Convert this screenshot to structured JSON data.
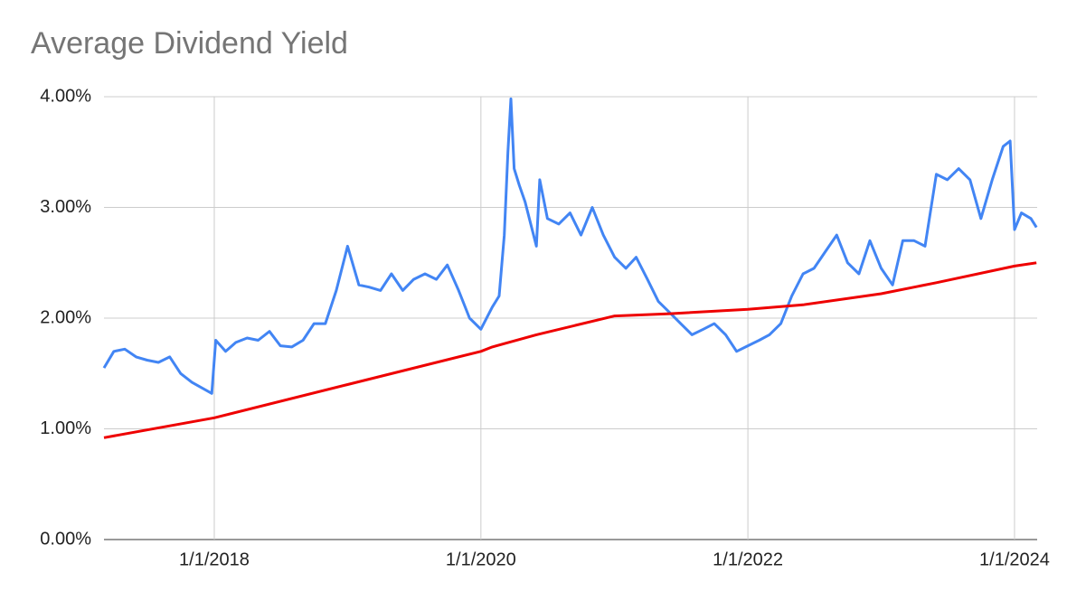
{
  "chart_data": {
    "type": "line",
    "title": "Average Dividend Yield",
    "xlim": [
      "2017-03-05",
      "2024-03-03"
    ],
    "xticks": [
      {
        "value": "2018-01-01",
        "label": "1/1/2018"
      },
      {
        "value": "2020-01-01",
        "label": "1/1/2020"
      },
      {
        "value": "2022-01-01",
        "label": "1/1/2022"
      },
      {
        "value": "2024-01-01",
        "label": "1/1/2024"
      }
    ],
    "ylim": [
      0,
      4
    ],
    "yticks": [
      {
        "value": 0,
        "label": "0.00%"
      },
      {
        "value": 1,
        "label": "1.00%"
      },
      {
        "value": 2,
        "label": "2.00%"
      },
      {
        "value": 3,
        "label": "3.00%"
      },
      {
        "value": 4,
        "label": "4.00%"
      }
    ],
    "grid": true,
    "series": [
      {
        "color": "#4285f4",
        "x": [
          "2017-03-05",
          "2017-04-01",
          "2017-05-01",
          "2017-06-01",
          "2017-07-01",
          "2017-08-01",
          "2017-09-01",
          "2017-10-01",
          "2017-11-01",
          "2017-12-25",
          "2018-01-05",
          "2018-02-01",
          "2018-03-01",
          "2018-04-01",
          "2018-05-01",
          "2018-06-01",
          "2018-07-01",
          "2018-08-01",
          "2018-09-01",
          "2018-10-01",
          "2018-11-01",
          "2018-12-01",
          "2019-01-01",
          "2019-02-01",
          "2019-03-01",
          "2019-04-01",
          "2019-05-01",
          "2019-06-01",
          "2019-07-01",
          "2019-08-01",
          "2019-09-01",
          "2019-10-01",
          "2019-11-01",
          "2019-12-01",
          "2020-01-01",
          "2020-02-01",
          "2020-02-20",
          "2020-03-05",
          "2020-03-15",
          "2020-03-23",
          "2020-04-01",
          "2020-04-15",
          "2020-05-01",
          "2020-06-01",
          "2020-06-10",
          "2020-07-01",
          "2020-08-01",
          "2020-09-01",
          "2020-10-01",
          "2020-11-01",
          "2020-12-01",
          "2021-01-01",
          "2021-02-01",
          "2021-03-01",
          "2021-04-01",
          "2021-05-01",
          "2021-06-01",
          "2021-07-01",
          "2021-08-01",
          "2021-09-01",
          "2021-10-01",
          "2021-11-01",
          "2021-12-01",
          "2022-01-01",
          "2022-02-01",
          "2022-03-01",
          "2022-04-01",
          "2022-05-01",
          "2022-06-01",
          "2022-07-01",
          "2022-08-01",
          "2022-09-01",
          "2022-10-01",
          "2022-11-01",
          "2022-12-01",
          "2023-01-01",
          "2023-02-01",
          "2023-03-01",
          "2023-04-01",
          "2023-05-01",
          "2023-06-01",
          "2023-07-01",
          "2023-08-01",
          "2023-09-01",
          "2023-10-01",
          "2023-11-01",
          "2023-12-01",
          "2023-12-20",
          "2024-01-01",
          "2024-01-20",
          "2024-02-15",
          "2024-03-01"
        ],
        "values": [
          1.55,
          1.7,
          1.72,
          1.65,
          1.62,
          1.6,
          1.65,
          1.5,
          1.42,
          1.32,
          1.8,
          1.7,
          1.78,
          1.82,
          1.8,
          1.88,
          1.75,
          1.74,
          1.8,
          1.95,
          1.95,
          2.25,
          2.65,
          2.3,
          2.28,
          2.25,
          2.4,
          2.25,
          2.35,
          2.4,
          2.35,
          2.48,
          2.25,
          2.0,
          1.9,
          2.1,
          2.2,
          2.75,
          3.5,
          3.98,
          3.35,
          3.2,
          3.05,
          2.65,
          3.25,
          2.9,
          2.85,
          2.95,
          2.75,
          3.0,
          2.75,
          2.55,
          2.45,
          2.55,
          2.35,
          2.15,
          2.05,
          1.95,
          1.85,
          1.9,
          1.95,
          1.85,
          1.7,
          1.75,
          1.8,
          1.85,
          1.95,
          2.2,
          2.4,
          2.45,
          2.6,
          2.75,
          2.5,
          2.4,
          2.7,
          2.45,
          2.3,
          2.7,
          2.7,
          2.65,
          3.3,
          3.25,
          3.35,
          3.25,
          2.9,
          3.25,
          3.55,
          3.6,
          2.8,
          2.95,
          2.9,
          2.82
        ]
      },
      {
        "color": "#ee0000",
        "x": [
          "2017-03-05",
          "2018-01-01",
          "2019-01-01",
          "2020-01-01",
          "2020-02-01",
          "2020-06-01",
          "2021-01-01",
          "2021-06-01",
          "2022-01-01",
          "2022-06-01",
          "2023-01-01",
          "2023-06-01",
          "2024-01-01",
          "2024-03-01"
        ],
        "values": [
          0.92,
          1.1,
          1.4,
          1.7,
          1.74,
          1.85,
          2.02,
          2.04,
          2.08,
          2.12,
          2.22,
          2.32,
          2.47,
          2.5
        ]
      }
    ]
  }
}
